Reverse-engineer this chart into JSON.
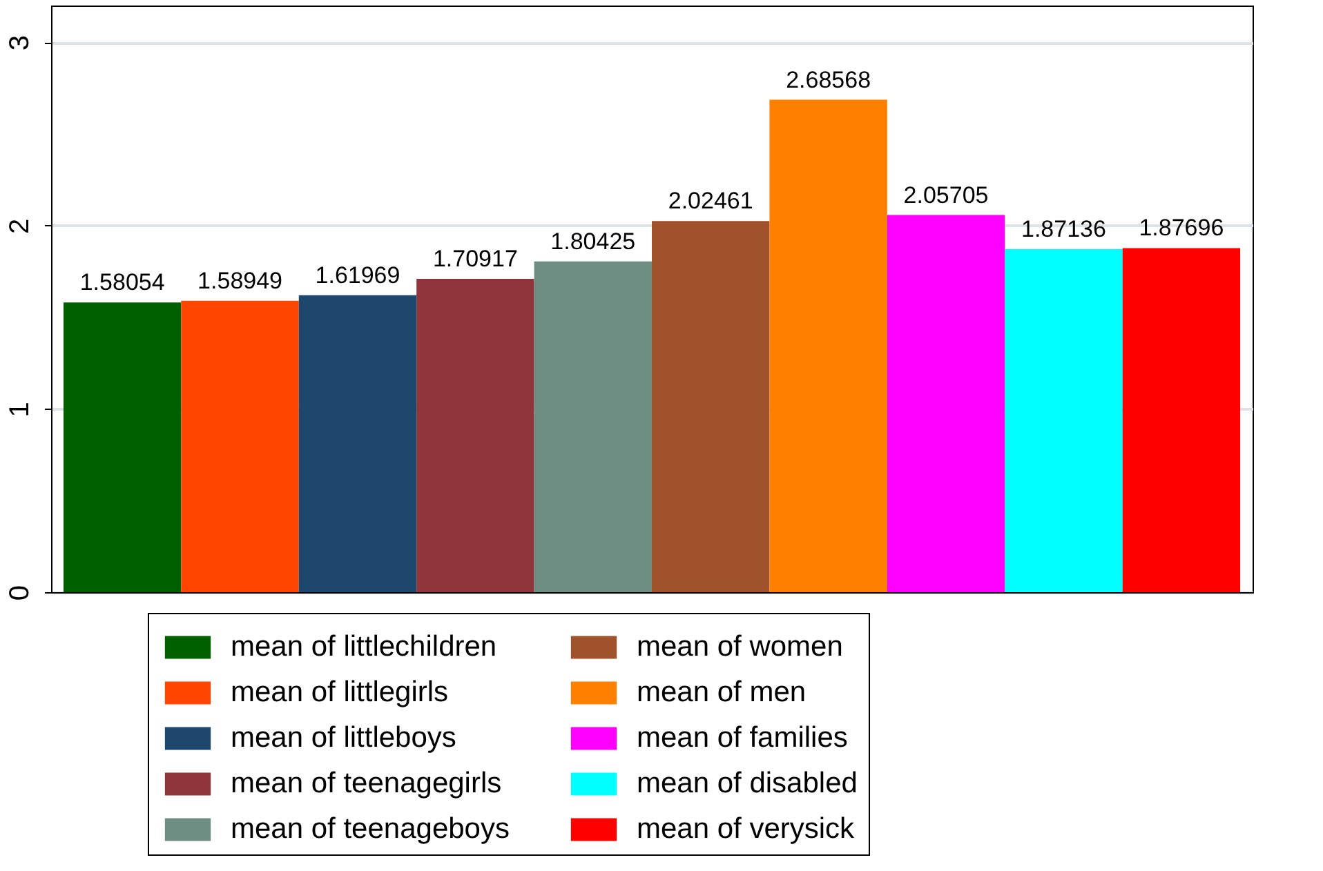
{
  "chart_data": {
    "type": "bar",
    "categories": [
      null
    ],
    "ylim": [
      0,
      3.2
    ],
    "yticks": [
      0,
      1,
      2,
      3
    ],
    "grid": "y",
    "legend": "bottom",
    "data_labels": true,
    "series": [
      {
        "name": "mean of littlechildren",
        "color": "#006000",
        "values": [
          1.58054
        ]
      },
      {
        "name": "mean of littlegirls",
        "color": "#ff4500",
        "values": [
          1.58949
        ]
      },
      {
        "name": "mean of littleboys",
        "color": "#1e476e",
        "values": [
          1.61969
        ]
      },
      {
        "name": "mean of teenagegirls",
        "color": "#90353b",
        "values": [
          1.70917
        ]
      },
      {
        "name": "mean of teenageboys",
        "color": "#6e8e84",
        "values": [
          1.80425
        ]
      },
      {
        "name": "mean of women",
        "color": "#a0522d",
        "values": [
          2.02461
        ]
      },
      {
        "name": "mean of men",
        "color": "#ff7f00",
        "values": [
          2.68568
        ]
      },
      {
        "name": "mean of families",
        "color": "#ff00ff",
        "values": [
          2.05705
        ]
      },
      {
        "name": "mean of disabled",
        "color": "#00ffff",
        "values": [
          1.87136
        ]
      },
      {
        "name": "mean of verysick",
        "color": "#ff0000",
        "values": [
          1.87696
        ]
      }
    ]
  }
}
